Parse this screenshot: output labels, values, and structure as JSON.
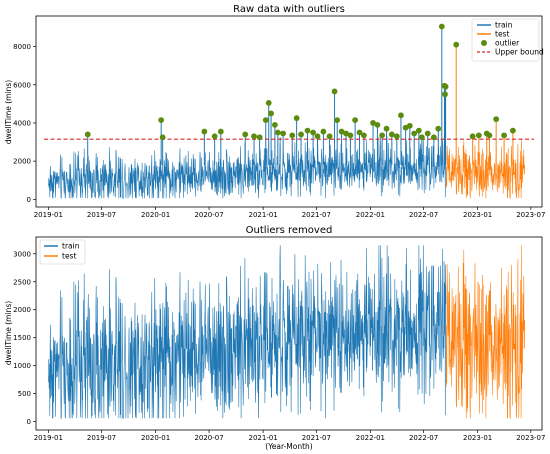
{
  "chart_data": [
    {
      "type": "line",
      "title": "Raw data with outliers",
      "xlabel": "",
      "ylabel": "dwellTime (mins)",
      "xlim": [
        "2018-11-20",
        "2023-08-08"
      ],
      "ylim": [
        -400,
        9600
      ],
      "x_ticks": [
        "2019-01",
        "2019-07",
        "2020-01",
        "2020-07",
        "2021-01",
        "2021-07",
        "2022-01",
        "2022-07",
        "2023-01",
        "2023-07"
      ],
      "y_ticks": [
        0,
        2000,
        4000,
        6000,
        8000
      ],
      "legend_position": "top-right",
      "legend": [
        "train",
        "test",
        "outlier",
        "Upper bound"
      ],
      "series": [
        {
          "name": "train",
          "color": "#1f77b4",
          "start": "2019-01-01",
          "end": "2022-09-15",
          "level_start": 900,
          "level_end": 1800,
          "amplitude": 1400
        },
        {
          "name": "test",
          "color": "#ff7f0e",
          "start": "2022-09-16",
          "end": "2023-06-10",
          "level_start": 1400,
          "level_end": 1300,
          "amplitude": 1500
        }
      ],
      "upper_bound": {
        "name": "Upper bound",
        "value": 3150,
        "color": "#d62728"
      },
      "outliers": {
        "name": "outlier",
        "color": "#5b8c0f",
        "points": [
          [
            "2019-05-15",
            3400
          ],
          [
            "2020-01-20",
            4150
          ],
          [
            "2020-01-25",
            3250
          ],
          [
            "2020-06-15",
            3550
          ],
          [
            "2020-07-20",
            3300
          ],
          [
            "2020-08-10",
            3550
          ],
          [
            "2020-11-01",
            3400
          ],
          [
            "2020-12-01",
            3300
          ],
          [
            "2020-12-20",
            3250
          ],
          [
            "2021-01-10",
            4150
          ],
          [
            "2021-01-20",
            5050
          ],
          [
            "2021-01-28",
            4500
          ],
          [
            "2021-02-10",
            3900
          ],
          [
            "2021-02-20",
            3500
          ],
          [
            "2021-03-10",
            3450
          ],
          [
            "2021-04-10",
            3350
          ],
          [
            "2021-04-25",
            4250
          ],
          [
            "2021-05-10",
            3400
          ],
          [
            "2021-06-01",
            3600
          ],
          [
            "2021-06-20",
            3500
          ],
          [
            "2021-07-05",
            3300
          ],
          [
            "2021-07-25",
            3550
          ],
          [
            "2021-08-15",
            3300
          ],
          [
            "2021-09-01",
            5650
          ],
          [
            "2021-09-10",
            4150
          ],
          [
            "2021-09-25",
            3550
          ],
          [
            "2021-10-10",
            3450
          ],
          [
            "2021-10-25",
            3350
          ],
          [
            "2021-11-10",
            4150
          ],
          [
            "2021-11-25",
            3500
          ],
          [
            "2021-12-10",
            3350
          ],
          [
            "2022-01-10",
            4000
          ],
          [
            "2022-01-25",
            3900
          ],
          [
            "2022-02-10",
            3350
          ],
          [
            "2022-02-25",
            3700
          ],
          [
            "2022-03-15",
            3400
          ],
          [
            "2022-04-01",
            3300
          ],
          [
            "2022-04-15",
            4400
          ],
          [
            "2022-05-01",
            3750
          ],
          [
            "2022-05-15",
            3850
          ],
          [
            "2022-05-30",
            3450
          ],
          [
            "2022-06-15",
            3600
          ],
          [
            "2022-06-25",
            3250
          ],
          [
            "2022-07-15",
            3450
          ],
          [
            "2022-08-05",
            3250
          ],
          [
            "2022-08-20",
            3700
          ],
          [
            "2022-09-01",
            9050
          ],
          [
            "2022-09-10",
            5950
          ],
          [
            "2022-09-12",
            5500
          ],
          [
            "2022-09-14",
            5900
          ],
          [
            "2022-10-20",
            8100
          ],
          [
            "2022-12-15",
            3300
          ],
          [
            "2023-01-05",
            3350
          ],
          [
            "2023-02-01",
            3450
          ],
          [
            "2023-02-10",
            3350
          ],
          [
            "2023-03-05",
            4200
          ],
          [
            "2023-04-01",
            3350
          ],
          [
            "2023-05-01",
            3600
          ]
        ]
      }
    },
    {
      "type": "line",
      "title": "Outliers removed",
      "xlabel": "(Year-Month)",
      "ylabel": "dwellTime (mins)",
      "xlim": [
        "2018-11-20",
        "2023-08-08"
      ],
      "ylim": [
        -150,
        3300
      ],
      "x_ticks": [
        "2019-01",
        "2019-07",
        "2020-01",
        "2020-07",
        "2021-01",
        "2021-07",
        "2022-01",
        "2022-07",
        "2023-01",
        "2023-07"
      ],
      "y_ticks": [
        0,
        500,
        1000,
        1500,
        2000,
        2500,
        3000
      ],
      "legend_position": "top-left",
      "legend": [
        "train",
        "test"
      ],
      "series": [
        {
          "name": "train",
          "color": "#1f77b4",
          "start": "2019-01-01",
          "end": "2022-09-15",
          "level_start": 900,
          "level_end": 1800,
          "amplitude": 1400
        },
        {
          "name": "test",
          "color": "#ff7f0e",
          "start": "2022-09-16",
          "end": "2023-06-10",
          "level_start": 1400,
          "level_end": 1300,
          "amplitude": 1500
        }
      ]
    }
  ]
}
